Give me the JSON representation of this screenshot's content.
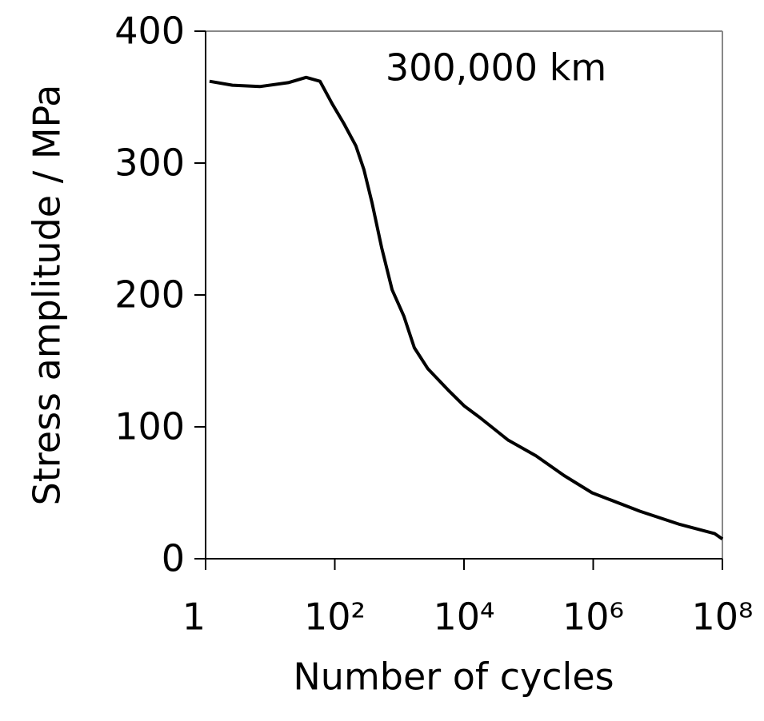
{
  "chart_data": {
    "type": "line",
    "annotation": "300,000 km",
    "x_label": "Number of cycles",
    "y_label": "Stress amplitude / MPa",
    "x_scale": "log",
    "xlim": [
      1,
      100000000
    ],
    "xticks": [
      1,
      {
        "value": 100,
        "label": "10²"
      },
      {
        "value": 10000,
        "label": "10⁴"
      },
      {
        "value": 1000000,
        "label": "10⁶"
      },
      {
        "value": 100000000,
        "label": "10⁸"
      }
    ],
    "ylim": [
      0,
      400
    ],
    "yticks": [
      0,
      100,
      200,
      300,
      400
    ],
    "color": "#000000",
    "x": [
      1.15,
      2.6,
      6.9,
      19,
      36,
      59,
      91,
      138,
      212,
      282,
      377,
      530,
      770,
      1170,
      1700,
      2760,
      5650,
      10000,
      17700,
      48000,
      130000,
      355000,
      960000,
      5300000,
      22000000,
      76000000,
      100000000
    ],
    "values": [
      362,
      359,
      358,
      361,
      365,
      362,
      345,
      330,
      313,
      295,
      270,
      236,
      204,
      184,
      160,
      144,
      128,
      116,
      107,
      90,
      78,
      63,
      50,
      36,
      26,
      19,
      15
    ]
  }
}
